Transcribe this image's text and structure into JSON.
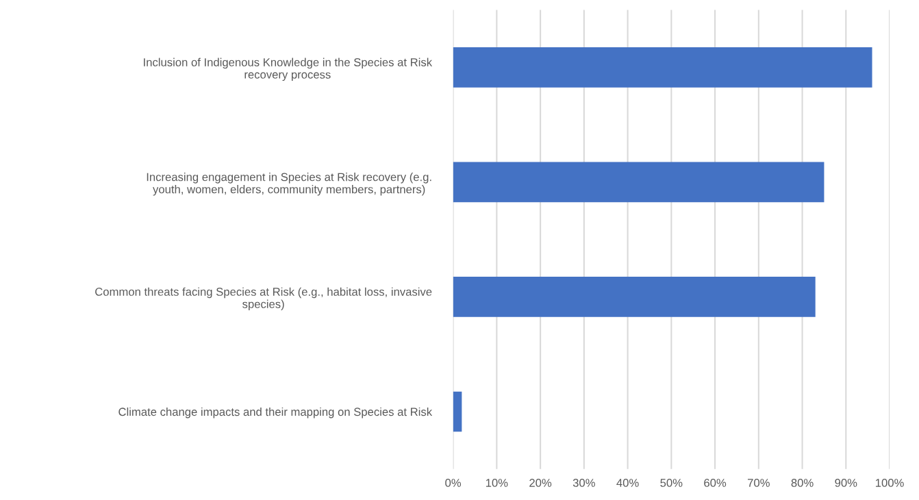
{
  "chart_data": {
    "type": "bar",
    "orientation": "horizontal",
    "categories": [
      "Inclusion of Indigenous Knowledge in the Species at Risk\nrecovery process",
      "Increasing engagement in Species at Risk recovery (e.g.\nyouth, women, elders, community members, partners)",
      "Common threats facing Species at Risk (e.g., habitat loss, invasive\nspecies)",
      "Climate change impacts and their mapping on Species at Risk"
    ],
    "values": [
      96,
      85,
      83,
      2
    ],
    "color": "#4472c4",
    "xlim": [
      0,
      100
    ],
    "xticks": [
      {
        "value": 0,
        "label": "0%"
      },
      {
        "value": 10,
        "label": "10%"
      },
      {
        "value": 20,
        "label": "20%"
      },
      {
        "value": 30,
        "label": "30%"
      },
      {
        "value": 40,
        "label": "40%"
      },
      {
        "value": 50,
        "label": "50%"
      },
      {
        "value": 60,
        "label": "60%"
      },
      {
        "value": 70,
        "label": "70%"
      },
      {
        "value": 80,
        "label": "80%"
      },
      {
        "value": 90,
        "label": "90%"
      },
      {
        "value": 100,
        "label": "100%"
      }
    ],
    "grid": "x",
    "legend": false
  }
}
